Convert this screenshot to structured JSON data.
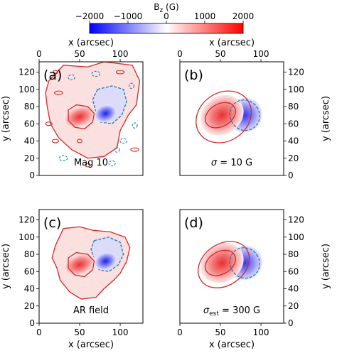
{
  "figure": {
    "colorbar": {
      "label": "B_z (G)",
      "label_main": "B",
      "label_sub": "z",
      "label_unit": " (G)",
      "ticks": [
        -2000,
        -1000,
        0,
        1000,
        2000
      ],
      "tick_labels": [
        "−2000",
        "−1000",
        "0",
        "1000",
        "2000"
      ],
      "range": [
        -2000,
        2000
      ],
      "colormap": "bwr",
      "negative_color": "#0000ff",
      "zero_color": "#ffffff",
      "positive_color": "#ff0000"
    },
    "axes": {
      "x_label": "x (arcsec)",
      "y_label": "y (arcsec)",
      "x_ticks": [
        0,
        50,
        100
      ],
      "y_ticks": [
        0,
        20,
        40,
        60,
        80,
        100,
        120
      ],
      "x_range": [
        0,
        128
      ],
      "y_range": [
        0,
        132
      ]
    },
    "contour_colors": {
      "positive": "#d62728",
      "negative": "#1f77b4"
    },
    "panels": [
      {
        "id": "a",
        "label": "(a)",
        "annotation": "Mag 10",
        "annotation_math": false
      },
      {
        "id": "b",
        "label": "(b)",
        "annotation_sym": "σ",
        "annotation_sub": "",
        "annotation_rest": " = 10 G",
        "annotation_math": true
      },
      {
        "id": "c",
        "label": "(c)",
        "annotation": "AR field",
        "annotation_math": false
      },
      {
        "id": "d",
        "label": "(d)",
        "annotation_sym": "σ",
        "annotation_sub": "est",
        "annotation_rest": " = 300 G",
        "annotation_math": true
      }
    ]
  },
  "chart_data": {
    "type": "heatmap",
    "description_items": [
      {
        "panel": "(a)",
        "text": "Mag 10",
        "field": "observed magnetogram with noise"
      },
      {
        "panel": "(b)",
        "text": "σ = 10 G",
        "field": "bipole fit"
      },
      {
        "panel": "(c)",
        "text": "AR field",
        "field": "active region field"
      },
      {
        "panel": "(d)",
        "text": "σ_est = 300 G",
        "field": "bipole fit"
      }
    ],
    "xlabel": "x (arcsec)",
    "ylabel": "y (arcsec)",
    "xlim": [
      0,
      128
    ],
    "ylim": [
      0,
      132
    ],
    "colorbar_range": [
      -2000,
      2000
    ],
    "positive_center": [
      50,
      70
    ],
    "negative_center": [
      78,
      72
    ]
  }
}
